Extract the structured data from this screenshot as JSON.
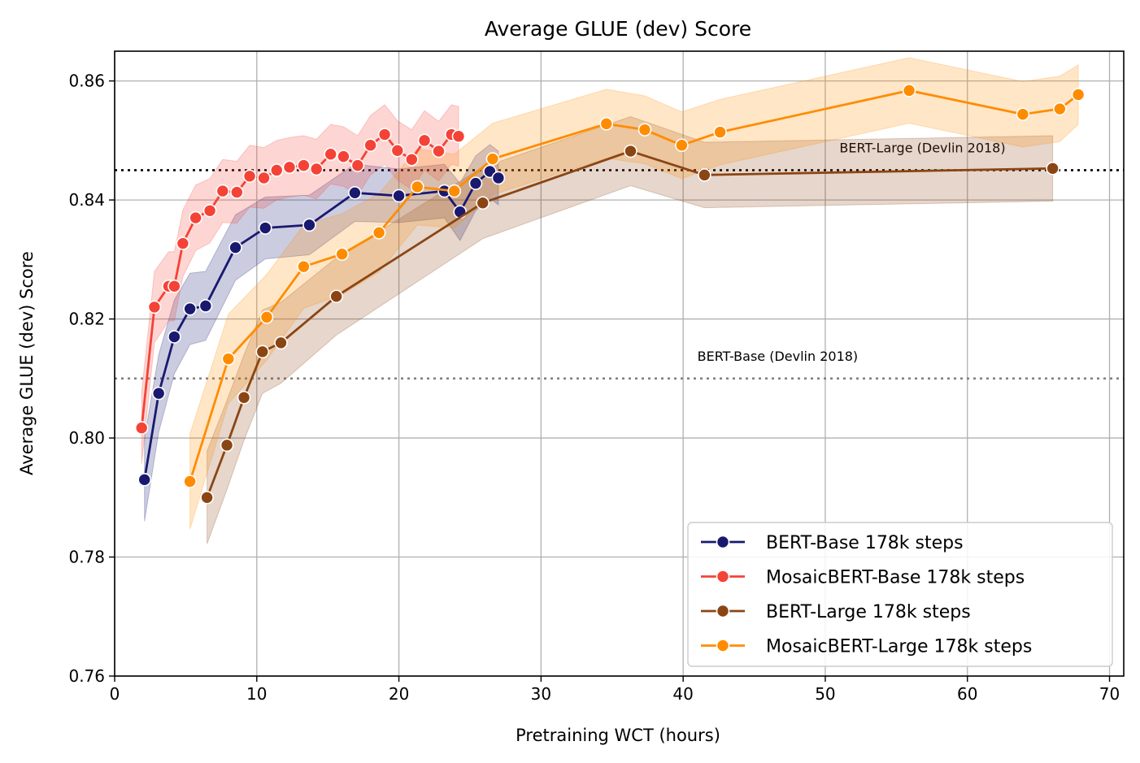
{
  "chart_data": {
    "type": "line",
    "title": "Average GLUE (dev) Score",
    "xlabel": "Pretraining WCT (hours)",
    "ylabel": "Average GLUE (dev) Score",
    "xlim": [
      0,
      71
    ],
    "ylim": [
      0.76,
      0.865
    ],
    "xticks": [
      0,
      10,
      20,
      30,
      40,
      50,
      60,
      70
    ],
    "yticks": [
      0.76,
      0.78,
      0.8,
      0.82,
      0.84,
      0.86
    ],
    "xtick_labels": [
      "0",
      "10",
      "20",
      "30",
      "40",
      "50",
      "60",
      "70"
    ],
    "ytick_labels": [
      "0.76",
      "0.78",
      "0.80",
      "0.82",
      "0.84",
      "0.86"
    ],
    "grid": true,
    "legend_position": "lower-right",
    "reference_lines": [
      {
        "label": "BERT-Large (Devlin 2018)",
        "y": 0.845,
        "color": "#000000",
        "label_x": 51
      },
      {
        "label": "BERT-Base (Devlin 2018)",
        "y": 0.81,
        "color": "#808080",
        "label_x": 41
      }
    ],
    "series": [
      {
        "name": "BERT-Base 178k steps",
        "color": "#191970",
        "x": [
          2.1,
          3.1,
          4.2,
          5.3,
          6.4,
          8.5,
          10.6,
          13.7,
          16.9,
          20.0,
          23.2,
          24.3,
          25.4,
          26.4,
          27.0
        ],
        "y": [
          0.793,
          0.8075,
          0.817,
          0.8217,
          0.8222,
          0.832,
          0.8353,
          0.8358,
          0.8412,
          0.8407,
          0.8415,
          0.838,
          0.8428,
          0.8448,
          0.8437
        ],
        "err": [
          0.007,
          0.0065,
          0.0062,
          0.006,
          0.0058,
          0.0055,
          0.0052,
          0.005,
          0.0048,
          0.0045,
          0.0045,
          0.0048,
          0.0046,
          0.0045,
          0.0045
        ]
      },
      {
        "name": "MosaicBERT-Base 178k steps",
        "color": "#f44336",
        "x": [
          1.9,
          2.8,
          3.8,
          4.2,
          4.8,
          5.7,
          6.7,
          7.6,
          8.6,
          9.5,
          10.5,
          11.4,
          12.3,
          13.3,
          14.2,
          15.2,
          16.1,
          17.1,
          18.0,
          19.0,
          19.9,
          20.9,
          21.8,
          22.8,
          23.7,
          24.2
        ],
        "y": [
          0.8017,
          0.822,
          0.8255,
          0.8255,
          0.8327,
          0.837,
          0.8382,
          0.8415,
          0.8413,
          0.844,
          0.8437,
          0.845,
          0.8455,
          0.8458,
          0.8452,
          0.8477,
          0.8473,
          0.8458,
          0.8492,
          0.851,
          0.8483,
          0.8468,
          0.85,
          0.8482,
          0.851,
          0.8507
        ],
        "err": [
          0.006,
          0.006,
          0.0058,
          0.0058,
          0.0056,
          0.0055,
          0.0054,
          0.0053,
          0.0052,
          0.0052,
          0.0051,
          0.005,
          0.005,
          0.005,
          0.005,
          0.005,
          0.005,
          0.005,
          0.005,
          0.005,
          0.005,
          0.005,
          0.005,
          0.005,
          0.005,
          0.005
        ]
      },
      {
        "name": "BERT-Large 178k steps",
        "color": "#8b4513",
        "x": [
          6.5,
          7.9,
          9.1,
          10.4,
          11.7,
          15.6,
          25.9,
          36.3,
          41.5,
          66.0
        ],
        "y": [
          0.79,
          0.7988,
          0.8068,
          0.8145,
          0.816,
          0.8238,
          0.8395,
          0.8482,
          0.8442,
          0.8453
        ],
        "err": [
          0.0078,
          0.0075,
          0.0072,
          0.007,
          0.0068,
          0.0065,
          0.006,
          0.0058,
          0.0055,
          0.0055
        ]
      },
      {
        "name": "MosaicBERT-Large 178k steps",
        "color": "#ff8c00",
        "x": [
          5.3,
          8.0,
          10.7,
          13.3,
          16.0,
          18.6,
          21.3,
          23.9,
          26.6,
          34.6,
          37.3,
          39.9,
          42.6,
          55.9,
          63.9,
          66.5,
          67.8
        ],
        "y": [
          0.7927,
          0.8133,
          0.8203,
          0.8288,
          0.8309,
          0.8345,
          0.8422,
          0.8415,
          0.8469,
          0.8528,
          0.8518,
          0.8492,
          0.8514,
          0.8584,
          0.8544,
          0.8553,
          0.8577
        ],
        "err": [
          0.008,
          0.0075,
          0.0072,
          0.007,
          0.0068,
          0.0066,
          0.0064,
          0.0062,
          0.006,
          0.0058,
          0.0057,
          0.0056,
          0.0055,
          0.0055,
          0.0055,
          0.0055,
          0.005
        ]
      }
    ]
  }
}
